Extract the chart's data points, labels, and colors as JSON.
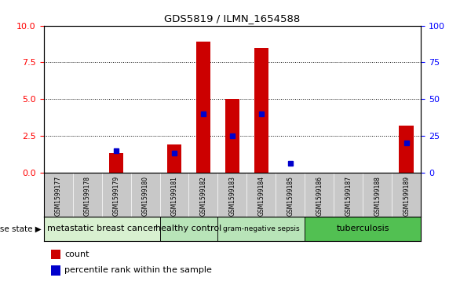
{
  "title": "GDS5819 / ILMN_1654588",
  "samples": [
    "GSM1599177",
    "GSM1599178",
    "GSM1599179",
    "GSM1599180",
    "GSM1599181",
    "GSM1599182",
    "GSM1599183",
    "GSM1599184",
    "GSM1599185",
    "GSM1599186",
    "GSM1599187",
    "GSM1599188",
    "GSM1599189"
  ],
  "count_values": [
    0.0,
    0.0,
    1.3,
    0.0,
    1.9,
    8.9,
    5.0,
    8.5,
    0.0,
    0.0,
    0.0,
    0.0,
    3.2
  ],
  "percentile_values": [
    0.0,
    0.0,
    15.0,
    0.0,
    13.0,
    40.0,
    25.0,
    40.0,
    6.0,
    0.0,
    0.0,
    0.0,
    20.0
  ],
  "disease_groups": [
    {
      "label": "metastatic breast cancer",
      "start": 0,
      "end": 4
    },
    {
      "label": "healthy control",
      "start": 4,
      "end": 6
    },
    {
      "label": "gram-negative sepsis",
      "start": 6,
      "end": 9
    },
    {
      "label": "tuberculosis",
      "start": 9,
      "end": 13
    }
  ],
  "group_colors": [
    "#d8f0d0",
    "#b8e4b8",
    "#b8e4b8",
    "#52c052"
  ],
  "ylim_left": [
    0,
    10
  ],
  "ylim_right": [
    0,
    100
  ],
  "yticks_left": [
    0,
    2.5,
    5,
    7.5,
    10
  ],
  "yticks_right": [
    0,
    25,
    50,
    75,
    100
  ],
  "bar_color": "#cc0000",
  "percentile_color": "#0000cc",
  "tick_area_color": "#c8c8c8",
  "legend_square_red": "#cc0000",
  "legend_square_blue": "#0000cc"
}
